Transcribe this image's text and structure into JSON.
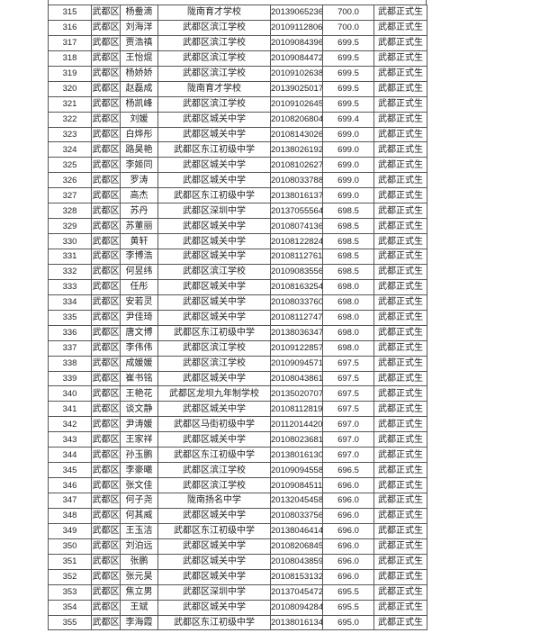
{
  "table": {
    "rows": [
      [
        "315",
        "武都区",
        "杨鲞滴",
        "陇南育才学校",
        "20139065236",
        "700.0",
        "武都正式生"
      ],
      [
        "316",
        "武都区",
        "刘海洋",
        "武都区滨江学校",
        "20109112806",
        "700.0",
        "武都正式生"
      ],
      [
        "317",
        "武都区",
        "贾浩禛",
        "武都区滨江学校",
        "20109084396",
        "699.5",
        "武都正式生"
      ],
      [
        "318",
        "武都区",
        "王怡焜",
        "武都区滨江学校",
        "20109084472",
        "699.5",
        "武都正式生"
      ],
      [
        "319",
        "武都区",
        "杨娇娇",
        "武都区滨江学校",
        "20109102638",
        "699.5",
        "武都正式生"
      ],
      [
        "320",
        "武都区",
        "赵磊成",
        "陇南育才学校",
        "20139025017",
        "699.5",
        "武都正式生"
      ],
      [
        "321",
        "武都区",
        "杨凯峰",
        "武都区滨江学校",
        "20109102645",
        "699.5",
        "武都正式生"
      ],
      [
        "322",
        "武都区",
        "刘媛",
        "武都区城关中学",
        "20108206804",
        "699.4",
        "武都正式生"
      ],
      [
        "323",
        "武都区",
        "白烨彤",
        "武都区城关中学",
        "20108143026",
        "699.0",
        "武都正式生"
      ],
      [
        "324",
        "武都区",
        "路昊艳",
        "武都区东江初级中学",
        "20138026192",
        "699.0",
        "武都正式生"
      ],
      [
        "325",
        "武都区",
        "李姬同",
        "武都区城关中学",
        "20108102627",
        "699.0",
        "武都正式生"
      ],
      [
        "326",
        "武都区",
        "罗涛",
        "武都区城关中学",
        "20108033788",
        "699.0",
        "武都正式生"
      ],
      [
        "327",
        "武都区",
        "高杰",
        "武都区东江初级中学",
        "20138016137",
        "699.0",
        "武都正式生"
      ],
      [
        "328",
        "武都区",
        "苏丹",
        "武都区深圳中学",
        "20137055564",
        "698.5",
        "武都正式生"
      ],
      [
        "329",
        "武都区",
        "苏董丽",
        "武都区城关中学",
        "20108074136",
        "698.5",
        "武都正式生"
      ],
      [
        "330",
        "武都区",
        "黄轩",
        "武都区城关中学",
        "20108122824",
        "698.5",
        "武都正式生"
      ],
      [
        "331",
        "武都区",
        "李博浩",
        "武都区城关中学",
        "20108112761",
        "698.5",
        "武都正式生"
      ],
      [
        "332",
        "武都区",
        "何昱纬",
        "武都区滨江学校",
        "20109083556",
        "698.5",
        "武都正式生"
      ],
      [
        "333",
        "武都区",
        "任彤",
        "武都区城关中学",
        "20108163254",
        "698.0",
        "武都正式生"
      ],
      [
        "334",
        "武都区",
        "安若灵",
        "武都区城关中学",
        "20108033760",
        "698.0",
        "武都正式生"
      ],
      [
        "335",
        "武都区",
        "尹佳琦",
        "武都区城关中学",
        "20108112747",
        "698.0",
        "武都正式生"
      ],
      [
        "336",
        "武都区",
        "唐文博",
        "武都区东江初级中学",
        "20138036347",
        "698.0",
        "武都正式生"
      ],
      [
        "337",
        "武都区",
        "李伟伟",
        "武都区滨江学校",
        "20109122857",
        "698.0",
        "武都正式生"
      ],
      [
        "338",
        "武都区",
        "成媛媛",
        "武都区滨江学校",
        "20109094571",
        "697.5",
        "武都正式生"
      ],
      [
        "339",
        "武都区",
        "崔书铭",
        "武都区城关中学",
        "20108043861",
        "697.5",
        "武都正式生"
      ],
      [
        "340",
        "武都区",
        "王艳花",
        "武都区龙坝九年制学校",
        "20135020707",
        "697.5",
        "武都正式生"
      ],
      [
        "341",
        "武都区",
        "谈文静",
        "武都区城关中学",
        "20108112819",
        "697.5",
        "武都正式生"
      ],
      [
        "342",
        "武都区",
        "尹涛媛",
        "武都区马街初级中学",
        "20112014420",
        "697.0",
        "武都正式生"
      ],
      [
        "343",
        "武都区",
        "王家祥",
        "武都区城关中学",
        "20108023681",
        "697.0",
        "武都正式生"
      ],
      [
        "344",
        "武都区",
        "孙玉鹏",
        "武都区东江初级中学",
        "20138016130",
        "697.0",
        "武都正式生"
      ],
      [
        "345",
        "武都区",
        "李豪曦",
        "武都区滨江学校",
        "20109094558",
        "696.5",
        "武都正式生"
      ],
      [
        "346",
        "武都区",
        "张文佳",
        "武都区滨江学校",
        "20109084511",
        "696.0",
        "武都正式生"
      ],
      [
        "347",
        "武都区",
        "何子尧",
        "陇南扬名中学",
        "20132045458",
        "696.0",
        "武都正式生"
      ],
      [
        "348",
        "武都区",
        "何其威",
        "武都区城关中学",
        "20108033756",
        "696.0",
        "武都正式生"
      ],
      [
        "349",
        "武都区",
        "王玉洁",
        "武都区东江初级中学",
        "20138046414",
        "696.0",
        "武都正式生"
      ],
      [
        "350",
        "武都区",
        "刘泊远",
        "武都区城关中学",
        "20108206845",
        "696.0",
        "武都正式生"
      ],
      [
        "351",
        "武都区",
        "张鹏",
        "武都区城关中学",
        "20108043859",
        "696.0",
        "武都正式生"
      ],
      [
        "352",
        "武都区",
        "张元昊",
        "武都区城关中学",
        "20108153132",
        "696.0",
        "武都正式生"
      ],
      [
        "353",
        "武都区",
        "焦立男",
        "武都区深圳中学",
        "20137045472",
        "695.5",
        "武都正式生"
      ],
      [
        "354",
        "武都区",
        "王斌",
        "武都区城关中学",
        "20108094284",
        "695.5",
        "武都正式生"
      ],
      [
        "355",
        "武都区",
        "李海霞",
        "武都区东江初级中学",
        "20138016134",
        "695.0",
        "武都正式生"
      ]
    ]
  }
}
